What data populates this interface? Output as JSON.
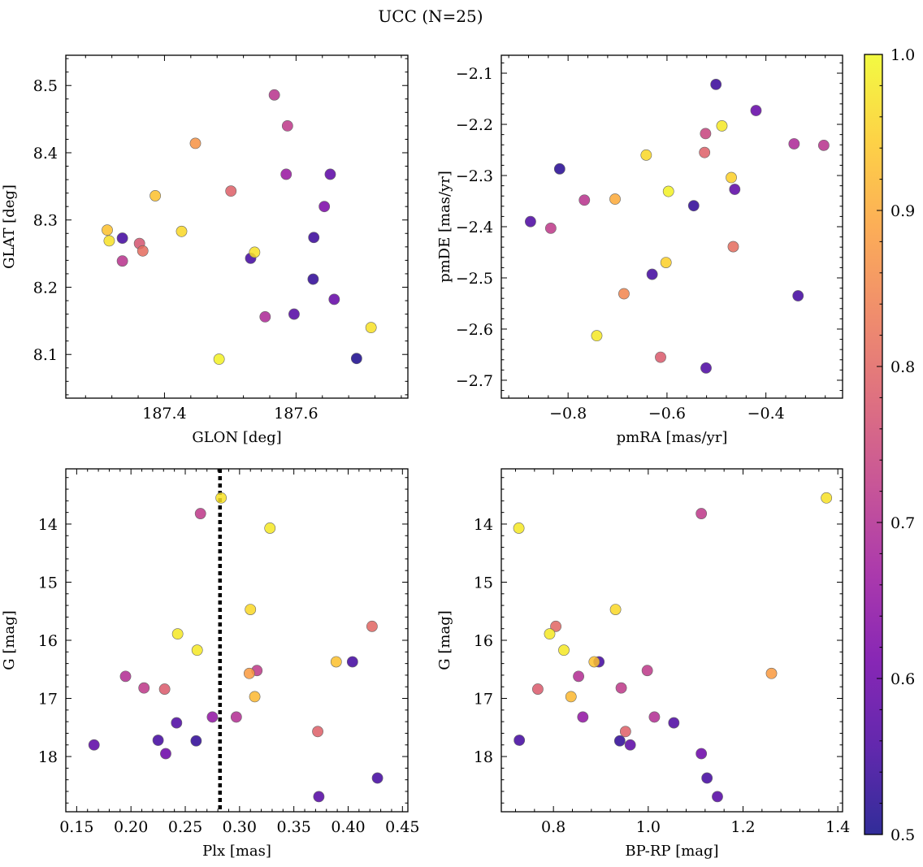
{
  "figure": {
    "title": "UCC (N=25)"
  },
  "colorbar": {
    "min": 0.5,
    "max": 1.0,
    "ticks": [
      0.5,
      0.6,
      0.7,
      0.8,
      0.9,
      1.0
    ],
    "tick_labels": [
      "0.5",
      "0.6",
      "0.7",
      "0.8",
      "0.9",
      "1.0"
    ],
    "colormap": "plasma",
    "colormap_stops": [
      "#0d0887",
      "#46039f",
      "#7201a8",
      "#9c179e",
      "#bd3786",
      "#d8576b",
      "#ed7953",
      "#fb9f3a",
      "#fdca26",
      "#f0f921"
    ]
  },
  "chart_data": [
    {
      "type": "scatter",
      "xlabel": "GLON [deg]",
      "ylabel": "GLAT [deg]",
      "xlim": [
        187.25,
        187.77
      ],
      "ylim": [
        8.035,
        8.545
      ],
      "yinvert": false,
      "xticks": [
        187.4,
        187.6
      ],
      "xtick_labels": [
        "187.4",
        "187.6"
      ],
      "yticks": [
        8.1,
        8.2,
        8.3,
        8.4,
        8.5
      ],
      "ytick_labels": [
        "8.1",
        "8.2",
        "8.3",
        "8.4",
        "8.5"
      ],
      "points": [
        {
          "x": 187.313,
          "y": 8.285,
          "c": 0.93
        },
        {
          "x": 187.316,
          "y": 8.269,
          "c": 0.97
        },
        {
          "x": 187.336,
          "y": 8.273,
          "c": 0.55
        },
        {
          "x": 187.336,
          "y": 8.239,
          "c": 0.71
        },
        {
          "x": 187.362,
          "y": 8.265,
          "c": 0.77
        },
        {
          "x": 187.367,
          "y": 8.254,
          "c": 0.81
        },
        {
          "x": 187.386,
          "y": 8.336,
          "c": 0.93
        },
        {
          "x": 187.426,
          "y": 8.283,
          "c": 0.96
        },
        {
          "x": 187.447,
          "y": 8.414,
          "c": 0.87
        },
        {
          "x": 187.483,
          "y": 8.093,
          "c": 0.99
        },
        {
          "x": 187.501,
          "y": 8.343,
          "c": 0.79
        },
        {
          "x": 187.531,
          "y": 8.243,
          "c": 0.55
        },
        {
          "x": 187.537,
          "y": 8.252,
          "c": 0.97
        },
        {
          "x": 187.553,
          "y": 8.156,
          "c": 0.69
        },
        {
          "x": 187.567,
          "y": 8.486,
          "c": 0.71
        },
        {
          "x": 187.585,
          "y": 8.368,
          "c": 0.66
        },
        {
          "x": 187.587,
          "y": 8.44,
          "c": 0.72
        },
        {
          "x": 187.597,
          "y": 8.16,
          "c": 0.57
        },
        {
          "x": 187.626,
          "y": 8.212,
          "c": 0.53
        },
        {
          "x": 187.627,
          "y": 8.274,
          "c": 0.54
        },
        {
          "x": 187.643,
          "y": 8.32,
          "c": 0.62
        },
        {
          "x": 187.652,
          "y": 8.368,
          "c": 0.58
        },
        {
          "x": 187.658,
          "y": 8.182,
          "c": 0.59
        },
        {
          "x": 187.692,
          "y": 8.094,
          "c": 0.51
        },
        {
          "x": 187.714,
          "y": 8.14,
          "c": 0.97
        }
      ]
    },
    {
      "type": "scatter",
      "xlabel": "pmRA [mas/yr]",
      "ylabel": "pmDE [mas/yr]",
      "xlim": [
        -0.935,
        -0.245
      ],
      "ylim": [
        -2.735,
        -2.065
      ],
      "yinvert": false,
      "xticks": [
        -0.8,
        -0.6,
        -0.4
      ],
      "xtick_labels": [
        "−0.8",
        "−0.6",
        "−0.4"
      ],
      "yticks": [
        -2.7,
        -2.6,
        -2.5,
        -2.4,
        -2.3,
        -2.2,
        -2.1
      ],
      "ytick_labels": [
        "−2.7",
        "−2.6",
        "−2.5",
        "−2.4",
        "−2.3",
        "−2.2",
        "−2.1"
      ],
      "points": [
        {
          "x": -0.876,
          "y": -2.39,
          "c": 0.56
        },
        {
          "x": -0.835,
          "y": -2.403,
          "c": 0.72
        },
        {
          "x": -0.817,
          "y": -2.287,
          "c": 0.52
        },
        {
          "x": -0.767,
          "y": -2.348,
          "c": 0.71
        },
        {
          "x": -0.742,
          "y": -2.613,
          "c": 0.98
        },
        {
          "x": -0.705,
          "y": -2.346,
          "c": 0.9
        },
        {
          "x": -0.687,
          "y": -2.531,
          "c": 0.85
        },
        {
          "x": -0.642,
          "y": -2.26,
          "c": 0.96
        },
        {
          "x": -0.63,
          "y": -2.493,
          "c": 0.55
        },
        {
          "x": -0.613,
          "y": -2.655,
          "c": 0.78
        },
        {
          "x": -0.602,
          "y": -2.47,
          "c": 0.95
        },
        {
          "x": -0.597,
          "y": -2.331,
          "c": 0.99
        },
        {
          "x": -0.546,
          "y": -2.359,
          "c": 0.53
        },
        {
          "x": -0.524,
          "y": -2.255,
          "c": 0.79
        },
        {
          "x": -0.522,
          "y": -2.218,
          "c": 0.74
        },
        {
          "x": -0.521,
          "y": -2.676,
          "c": 0.56
        },
        {
          "x": -0.501,
          "y": -2.122,
          "c": 0.54
        },
        {
          "x": -0.489,
          "y": -2.203,
          "c": 0.98
        },
        {
          "x": -0.47,
          "y": -2.304,
          "c": 0.95
        },
        {
          "x": -0.466,
          "y": -2.439,
          "c": 0.81
        },
        {
          "x": -0.463,
          "y": -2.327,
          "c": 0.58
        },
        {
          "x": -0.42,
          "y": -2.173,
          "c": 0.59
        },
        {
          "x": -0.343,
          "y": -2.238,
          "c": 0.69
        },
        {
          "x": -0.335,
          "y": -2.535,
          "c": 0.55
        },
        {
          "x": -0.283,
          "y": -2.241,
          "c": 0.71
        }
      ]
    },
    {
      "type": "scatter",
      "xlabel": "Plx [mas]",
      "ylabel": "G [mag]",
      "xlim": [
        0.14,
        0.455
      ],
      "ylim": [
        13.05,
        18.95
      ],
      "yinvert": true,
      "xticks": [
        0.15,
        0.2,
        0.25,
        0.3,
        0.35,
        0.4,
        0.45
      ],
      "xtick_labels": [
        "0.15",
        "0.20",
        "0.25",
        "0.30",
        "0.35",
        "0.40",
        "0.45"
      ],
      "yticks": [
        14,
        15,
        16,
        17,
        18
      ],
      "ytick_labels": [
        "14",
        "15",
        "16",
        "17",
        "18"
      ],
      "reference_line_x": 0.282,
      "points": [
        {
          "x": 0.283,
          "y": 13.55,
          "c": 0.97
        },
        {
          "x": 0.264,
          "y": 13.82,
          "c": 0.72
        },
        {
          "x": 0.328,
          "y": 14.07,
          "c": 0.98
        },
        {
          "x": 0.31,
          "y": 15.47,
          "c": 0.96
        },
        {
          "x": 0.422,
          "y": 15.76,
          "c": 0.8
        },
        {
          "x": 0.243,
          "y": 15.89,
          "c": 0.98
        },
        {
          "x": 0.261,
          "y": 16.17,
          "c": 0.98
        },
        {
          "x": 0.389,
          "y": 16.37,
          "c": 0.93
        },
        {
          "x": 0.404,
          "y": 16.37,
          "c": 0.55
        },
        {
          "x": 0.316,
          "y": 16.52,
          "c": 0.72
        },
        {
          "x": 0.309,
          "y": 16.57,
          "c": 0.88
        },
        {
          "x": 0.195,
          "y": 16.62,
          "c": 0.7
        },
        {
          "x": 0.212,
          "y": 16.82,
          "c": 0.72
        },
        {
          "x": 0.231,
          "y": 16.84,
          "c": 0.78
        },
        {
          "x": 0.314,
          "y": 16.97,
          "c": 0.92
        },
        {
          "x": 0.275,
          "y": 17.32,
          "c": 0.65
        },
        {
          "x": 0.297,
          "y": 17.32,
          "c": 0.7
        },
        {
          "x": 0.242,
          "y": 17.42,
          "c": 0.56
        },
        {
          "x": 0.372,
          "y": 17.57,
          "c": 0.79
        },
        {
          "x": 0.225,
          "y": 17.72,
          "c": 0.55
        },
        {
          "x": 0.26,
          "y": 17.73,
          "c": 0.53
        },
        {
          "x": 0.166,
          "y": 17.8,
          "c": 0.58
        },
        {
          "x": 0.232,
          "y": 17.95,
          "c": 0.6
        },
        {
          "x": 0.427,
          "y": 18.37,
          "c": 0.55
        },
        {
          "x": 0.373,
          "y": 18.69,
          "c": 0.57
        }
      ]
    },
    {
      "type": "scatter",
      "xlabel": "BP-RP [mag]",
      "ylabel": "G [mag]",
      "xlim": [
        0.69,
        1.41
      ],
      "ylim": [
        13.05,
        18.95
      ],
      "yinvert": true,
      "xticks": [
        0.8,
        1.0,
        1.2,
        1.4
      ],
      "xtick_labels": [
        "0.8",
        "1.0",
        "1.2",
        "1.4"
      ],
      "yticks": [
        14,
        15,
        16,
        17,
        18
      ],
      "ytick_labels": [
        "14",
        "15",
        "16",
        "17",
        "18"
      ],
      "points": [
        {
          "x": 1.376,
          "y": 13.55,
          "c": 0.97
        },
        {
          "x": 1.112,
          "y": 13.82,
          "c": 0.72
        },
        {
          "x": 0.727,
          "y": 14.07,
          "c": 0.98
        },
        {
          "x": 0.931,
          "y": 15.47,
          "c": 0.96
        },
        {
          "x": 0.805,
          "y": 15.76,
          "c": 0.8
        },
        {
          "x": 0.792,
          "y": 15.89,
          "c": 0.98
        },
        {
          "x": 0.822,
          "y": 16.17,
          "c": 0.98
        },
        {
          "x": 0.896,
          "y": 16.37,
          "c": 0.55
        },
        {
          "x": 0.886,
          "y": 16.37,
          "c": 0.93
        },
        {
          "x": 0.998,
          "y": 16.52,
          "c": 0.72
        },
        {
          "x": 1.26,
          "y": 16.57,
          "c": 0.88
        },
        {
          "x": 0.853,
          "y": 16.62,
          "c": 0.7
        },
        {
          "x": 0.943,
          "y": 16.82,
          "c": 0.72
        },
        {
          "x": 0.767,
          "y": 16.84,
          "c": 0.78
        },
        {
          "x": 0.837,
          "y": 16.97,
          "c": 0.92
        },
        {
          "x": 0.862,
          "y": 17.32,
          "c": 0.65
        },
        {
          "x": 1.013,
          "y": 17.32,
          "c": 0.7
        },
        {
          "x": 1.054,
          "y": 17.42,
          "c": 0.56
        },
        {
          "x": 0.952,
          "y": 17.57,
          "c": 0.79
        },
        {
          "x": 0.728,
          "y": 17.72,
          "c": 0.55
        },
        {
          "x": 0.94,
          "y": 17.73,
          "c": 0.53
        },
        {
          "x": 0.962,
          "y": 17.8,
          "c": 0.58
        },
        {
          "x": 1.112,
          "y": 17.95,
          "c": 0.6
        },
        {
          "x": 1.124,
          "y": 18.37,
          "c": 0.55
        },
        {
          "x": 1.146,
          "y": 18.69,
          "c": 0.57
        }
      ]
    }
  ]
}
